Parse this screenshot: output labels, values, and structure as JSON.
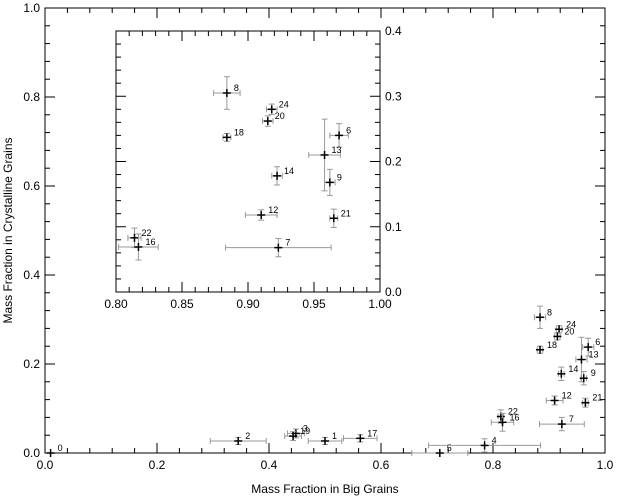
{
  "chart_data": [
    {
      "type": "scatter",
      "title": "",
      "xlabel": "Mass Fraction in Big Grains",
      "ylabel": "Mass Fraction in Crystalline Grains",
      "xlim": [
        0.0,
        1.0
      ],
      "ylim": [
        0.0,
        1.0
      ],
      "xticks": [
        0.0,
        0.2,
        0.4,
        0.6,
        0.8,
        1.0
      ],
      "xtick_labels": [
        "0.0",
        "0.2",
        "0.4",
        "0.6",
        "0.8",
        "1.0"
      ],
      "yticks": [
        0.0,
        0.2,
        0.4,
        0.6,
        0.8,
        1.0
      ],
      "ytick_labels": [
        "0.0",
        "0.2",
        "0.4",
        "0.6",
        "0.8",
        "1.0"
      ],
      "grid": false,
      "error_bar_color": "#999999",
      "marker_color": "#000000",
      "points": [
        {
          "label": "0",
          "x": 0.01,
          "y": 0.0,
          "xerr": 0.0,
          "yerr": 0.0
        },
        {
          "label": "1",
          "x": 0.5,
          "y": 0.027,
          "xerr": 0.03,
          "yerr": 0.008
        },
        {
          "label": "2",
          "x": 0.345,
          "y": 0.027,
          "xerr": 0.05,
          "yerr": 0.008
        },
        {
          "label": "3",
          "x": 0.448,
          "y": 0.044,
          "xerr": 0.015,
          "yerr": 0.01
        },
        {
          "label": "19",
          "x": 0.443,
          "y": 0.038,
          "xerr": 0.015,
          "yerr": 0.01
        },
        {
          "label": "17",
          "x": 0.563,
          "y": 0.033,
          "xerr": 0.03,
          "yerr": 0.008
        },
        {
          "label": "5",
          "x": 0.705,
          "y": 0.0,
          "xerr": 0.05,
          "yerr": 0.0
        },
        {
          "label": "4",
          "x": 0.785,
          "y": 0.017,
          "xerr": 0.1,
          "yerr": 0.015
        },
        {
          "label": "8",
          "x": 0.884,
          "y": 0.305,
          "xerr": 0.01,
          "yerr": 0.025
        },
        {
          "label": "24",
          "x": 0.918,
          "y": 0.278,
          "xerr": 0.005,
          "yerr": 0.008
        },
        {
          "label": "20",
          "x": 0.915,
          "y": 0.262,
          "xerr": 0.005,
          "yerr": 0.008
        },
        {
          "label": "18",
          "x": 0.884,
          "y": 0.232,
          "xerr": 0.005,
          "yerr": 0.008
        },
        {
          "label": "6",
          "x": 0.97,
          "y": 0.238,
          "xerr": 0.01,
          "yerr": 0.02
        },
        {
          "label": "13",
          "x": 0.958,
          "y": 0.21,
          "xerr": 0.01,
          "yerr": 0.05
        },
        {
          "label": "14",
          "x": 0.922,
          "y": 0.178,
          "xerr": 0.005,
          "yerr": 0.015
        },
        {
          "label": "9",
          "x": 0.962,
          "y": 0.168,
          "xerr": 0.005,
          "yerr": 0.015
        },
        {
          "label": "12",
          "x": 0.91,
          "y": 0.118,
          "xerr": 0.015,
          "yerr": 0.01
        },
        {
          "label": "21",
          "x": 0.965,
          "y": 0.113,
          "xerr": 0.005,
          "yerr": 0.01
        },
        {
          "label": "22",
          "x": 0.814,
          "y": 0.082,
          "xerr": 0.005,
          "yerr": 0.015
        },
        {
          "label": "16",
          "x": 0.817,
          "y": 0.069,
          "xerr": 0.02,
          "yerr": 0.02
        },
        {
          "label": "7",
          "x": 0.923,
          "y": 0.065,
          "xerr": 0.04,
          "yerr": 0.015
        }
      ]
    },
    {
      "type": "scatter",
      "title": "",
      "xlabel": "",
      "ylabel": "",
      "xlim": [
        0.8,
        1.0
      ],
      "ylim": [
        0.0,
        0.4
      ],
      "xticks": [
        0.8,
        0.85,
        0.9,
        0.95,
        1.0
      ],
      "xtick_labels": [
        "0.80",
        "0.85",
        "0.90",
        "0.95",
        "1.00"
      ],
      "yticks": [
        0.0,
        0.1,
        0.2,
        0.3,
        0.4
      ],
      "ytick_labels": [
        "0.0",
        "0.1",
        "0.2",
        "0.3",
        "0.4"
      ],
      "y_axis_side": "right",
      "grid": false,
      "points": [
        {
          "label": "8",
          "x": 0.884,
          "y": 0.305,
          "xerr": 0.01,
          "yerr": 0.025
        },
        {
          "label": "24",
          "x": 0.918,
          "y": 0.28,
          "xerr": 0.004,
          "yerr": 0.008
        },
        {
          "label": "20",
          "x": 0.915,
          "y": 0.262,
          "xerr": 0.004,
          "yerr": 0.008
        },
        {
          "label": "18",
          "x": 0.884,
          "y": 0.237,
          "xerr": 0.003,
          "yerr": 0.006
        },
        {
          "label": "6",
          "x": 0.969,
          "y": 0.24,
          "xerr": 0.007,
          "yerr": 0.018
        },
        {
          "label": "13",
          "x": 0.958,
          "y": 0.21,
          "xerr": 0.012,
          "yerr": 0.055
        },
        {
          "label": "14",
          "x": 0.922,
          "y": 0.178,
          "xerr": 0.004,
          "yerr": 0.014
        },
        {
          "label": "9",
          "x": 0.962,
          "y": 0.168,
          "xerr": 0.004,
          "yerr": 0.02
        },
        {
          "label": "12",
          "x": 0.91,
          "y": 0.118,
          "xerr": 0.012,
          "yerr": 0.008
        },
        {
          "label": "21",
          "x": 0.965,
          "y": 0.113,
          "xerr": 0.003,
          "yerr": 0.014
        },
        {
          "label": "22",
          "x": 0.814,
          "y": 0.083,
          "xerr": 0.005,
          "yerr": 0.015
        },
        {
          "label": "16",
          "x": 0.817,
          "y": 0.069,
          "xerr": 0.015,
          "yerr": 0.02
        },
        {
          "label": "7",
          "x": 0.923,
          "y": 0.068,
          "xerr": 0.04,
          "yerr": 0.014
        }
      ]
    }
  ]
}
